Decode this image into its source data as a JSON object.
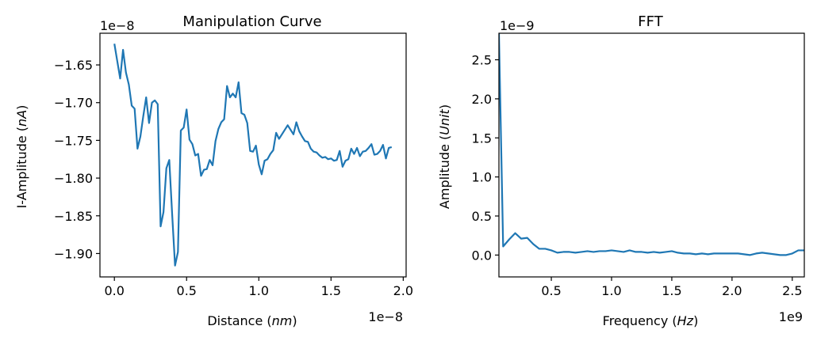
{
  "figure": {
    "background": "#ffffff",
    "line_color": "#1f77b4"
  },
  "chart_data": [
    {
      "type": "line",
      "title": "Manipulation Curve",
      "xlabel": "Distance (nm)",
      "ylabel": "I-Amplitude (nA)",
      "x_offset_label": "1e−8",
      "y_offset_label": "1e−8",
      "xlim": [
        -0.1,
        2.02
      ],
      "ylim": [
        -1.931,
        -1.608
      ],
      "xticks": [
        0.0,
        0.5,
        1.0,
        1.5,
        2.0
      ],
      "xtick_labels": [
        "0.0",
        "0.5",
        "1.0",
        "1.5",
        "2.0"
      ],
      "yticks": [
        -1.65,
        -1.7,
        -1.75,
        -1.8,
        -1.85,
        -1.9
      ],
      "ytick_labels": [
        "−1.65",
        "−1.70",
        "−1.75",
        "−1.80",
        "−1.85",
        "−1.90"
      ],
      "grid": false,
      "series": [
        {
          "x": [
            0.0,
            0.02,
            0.04,
            0.06,
            0.08,
            0.1,
            0.12,
            0.14,
            0.16,
            0.18,
            0.2,
            0.22,
            0.24,
            0.26,
            0.28,
            0.3,
            0.32,
            0.34,
            0.36,
            0.38,
            0.4,
            0.42,
            0.44,
            0.46,
            0.48,
            0.5,
            0.52,
            0.54,
            0.56,
            0.58,
            0.6,
            0.62,
            0.64,
            0.66,
            0.68,
            0.7,
            0.72,
            0.74,
            0.76,
            0.78,
            0.8,
            0.82,
            0.84,
            0.86,
            0.88,
            0.9,
            0.92,
            0.94,
            0.96,
            0.98,
            1.0,
            1.02,
            1.04,
            1.06,
            1.08,
            1.1,
            1.12,
            1.14,
            1.16,
            1.18,
            1.2,
            1.22,
            1.24,
            1.26,
            1.28,
            1.3,
            1.32,
            1.34,
            1.36,
            1.38,
            1.4,
            1.42,
            1.44,
            1.46,
            1.48,
            1.5,
            1.52,
            1.54,
            1.56,
            1.58,
            1.6,
            1.62,
            1.64,
            1.66,
            1.68,
            1.7,
            1.72,
            1.74,
            1.76,
            1.78,
            1.8,
            1.82,
            1.84,
            1.86,
            1.88,
            1.9,
            1.92
          ],
          "y": [
            -1.622,
            -1.645,
            -1.668,
            -1.63,
            -1.66,
            -1.676,
            -1.704,
            -1.708,
            -1.761,
            -1.745,
            -1.718,
            -1.693,
            -1.727,
            -1.7,
            -1.697,
            -1.702,
            -1.864,
            -1.845,
            -1.787,
            -1.776,
            -1.848,
            -1.916,
            -1.898,
            -1.737,
            -1.733,
            -1.709,
            -1.749,
            -1.755,
            -1.77,
            -1.768,
            -1.797,
            -1.789,
            -1.788,
            -1.776,
            -1.783,
            -1.751,
            -1.735,
            -1.726,
            -1.722,
            -1.678,
            -1.693,
            -1.688,
            -1.693,
            -1.673,
            -1.714,
            -1.716,
            -1.727,
            -1.764,
            -1.765,
            -1.757,
            -1.782,
            -1.795,
            -1.777,
            -1.775,
            -1.768,
            -1.763,
            -1.74,
            -1.748,
            -1.742,
            -1.736,
            -1.73,
            -1.736,
            -1.742,
            -1.726,
            -1.738,
            -1.745,
            -1.751,
            -1.752,
            -1.761,
            -1.765,
            -1.766,
            -1.77,
            -1.773,
            -1.772,
            -1.775,
            -1.774,
            -1.777,
            -1.776,
            -1.764,
            -1.785,
            -1.777,
            -1.775,
            -1.761,
            -1.768,
            -1.76,
            -1.771,
            -1.765,
            -1.764,
            -1.76,
            -1.755,
            -1.769,
            -1.768,
            -1.764,
            -1.756,
            -1.774,
            -1.76,
            -1.759
          ]
        }
      ]
    },
    {
      "type": "line",
      "title": "FFT",
      "xlabel": "Frequency (Hz)",
      "ylabel": "Amplitude (Unit)",
      "x_offset_label": "1e9",
      "y_offset_label": "1e−9",
      "xlim": [
        0.065,
        2.6
      ],
      "ylim": [
        -0.28,
        2.84
      ],
      "xticks": [
        0.5,
        1.0,
        1.5,
        2.0,
        2.5
      ],
      "xtick_labels": [
        "0.5",
        "1.0",
        "1.5",
        "2.0",
        "2.5"
      ],
      "yticks": [
        0.0,
        0.5,
        1.0,
        1.5,
        2.0,
        2.5
      ],
      "ytick_labels": [
        "0.0",
        "0.5",
        "1.0",
        "1.5",
        "2.0",
        "2.5"
      ],
      "grid": false,
      "series": [
        {
          "x": [
            0.065,
            0.1,
            0.15,
            0.2,
            0.25,
            0.3,
            0.35,
            0.4,
            0.45,
            0.5,
            0.55,
            0.6,
            0.65,
            0.7,
            0.75,
            0.8,
            0.85,
            0.9,
            0.95,
            1.0,
            1.05,
            1.1,
            1.15,
            1.2,
            1.25,
            1.3,
            1.35,
            1.4,
            1.45,
            1.5,
            1.55,
            1.6,
            1.65,
            1.7,
            1.75,
            1.8,
            1.85,
            1.9,
            1.95,
            2.0,
            2.05,
            2.1,
            2.15,
            2.2,
            2.25,
            2.3,
            2.35,
            2.4,
            2.45,
            2.5,
            2.55,
            2.6
          ],
          "y": [
            2.84,
            0.11,
            0.2,
            0.28,
            0.21,
            0.22,
            0.14,
            0.08,
            0.08,
            0.06,
            0.03,
            0.04,
            0.04,
            0.03,
            0.04,
            0.05,
            0.04,
            0.05,
            0.05,
            0.06,
            0.05,
            0.04,
            0.06,
            0.04,
            0.04,
            0.03,
            0.04,
            0.03,
            0.04,
            0.05,
            0.03,
            0.02,
            0.02,
            0.01,
            0.02,
            0.01,
            0.02,
            0.02,
            0.02,
            0.02,
            0.02,
            0.01,
            0.0,
            0.02,
            0.03,
            0.02,
            0.01,
            0.0,
            0.0,
            0.02,
            0.06,
            0.06
          ]
        }
      ]
    }
  ]
}
